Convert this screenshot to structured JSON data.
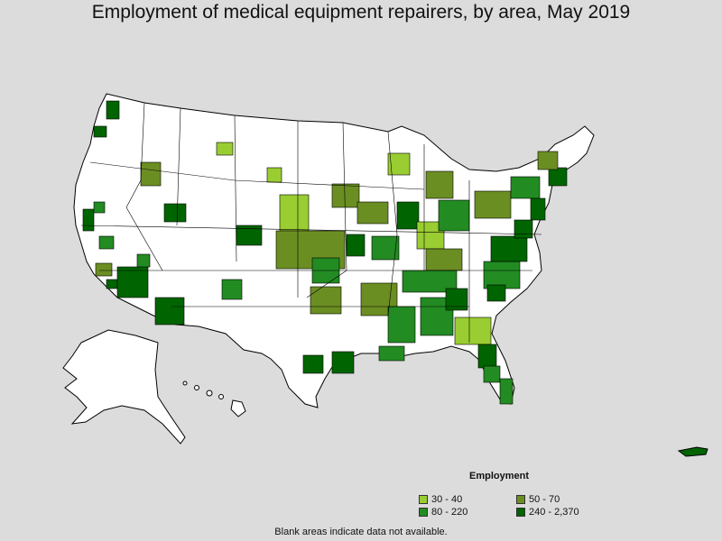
{
  "title": "Employment of medical equipment repairers, by area, May 2019",
  "legend": {
    "title": "Employment",
    "items": [
      {
        "label": "30 - 40",
        "color": "#9acd32"
      },
      {
        "label": "50 - 70",
        "color": "#6b8e23"
      },
      {
        "label": "80 - 220",
        "color": "#228b22"
      },
      {
        "label": "240 - 2,370",
        "color": "#006400"
      }
    ]
  },
  "note": "Blank areas indicate data not available.",
  "colors": {
    "background": "#dcdcdc",
    "land": "#ffffff",
    "border": "#000000"
  }
}
